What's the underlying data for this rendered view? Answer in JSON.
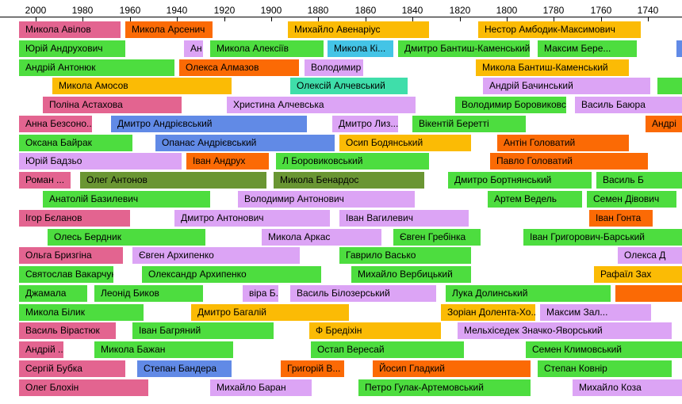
{
  "chart_data": {
    "type": "timeline",
    "x_axis": {
      "ticks": [
        2000,
        1980,
        1960,
        1940,
        1920,
        1900,
        1880,
        1860,
        1840,
        1820,
        1800,
        1780,
        1760,
        1740
      ],
      "direction": "descending"
    },
    "categories": {
      "sport": "#e36490",
      "literature": "#4ddd3f",
      "art": "#dca4f5",
      "politics": "#fb6a05",
      "music": "#fbbb05",
      "science": "#618ae6",
      "cinema": "#3fdeaa",
      "architecture": "#6a9633",
      "religion": "#44c4e6"
    },
    "rows": [
      [
        {
          "label": "Микола Авілов",
          "start": 2007,
          "end": 1964,
          "category": "sport"
        },
        {
          "label": "Микола Арсенич",
          "start": 1962,
          "end": 1925,
          "category": "politics"
        },
        {
          "label": "Михайло Авенаріус",
          "start": 1893,
          "end": 1833,
          "category": "music"
        },
        {
          "label": "Нестор Амбодик-Максимович",
          "start": 1812,
          "end": 1743,
          "category": "music"
        }
      ],
      [
        {
          "label": "Юрій Андрухович",
          "start": 2007,
          "end": 1962,
          "category": "literature"
        },
        {
          "label": "Ан",
          "start": 1937,
          "end": 1929,
          "category": "art"
        },
        {
          "label": "Микола Алексіїв",
          "start": 1926,
          "end": 1878,
          "category": "literature"
        },
        {
          "label": "Микола Кі...",
          "start": 1876,
          "end": 1848,
          "category": "religion"
        },
        {
          "label": "Дмитро Бантиш-Каменський",
          "start": 1846,
          "end": 1790,
          "category": "literature"
        },
        {
          "label": "Максим Бере...",
          "start": 1787,
          "end": 1745,
          "category": "literature"
        },
        {
          "label": "",
          "start": 1728,
          "end": 1710,
          "category": "science"
        }
      ],
      [
        {
          "label": "Андрій Антонюк",
          "start": 2007,
          "end": 1941,
          "category": "literature"
        },
        {
          "label": "Олекса Алмазов",
          "start": 1939,
          "end": 1888,
          "category": "politics"
        },
        {
          "label": "Володимир Ба...",
          "start": 1886,
          "end": 1861,
          "category": "art"
        },
        {
          "label": "Микола Бантиш-Каменський",
          "start": 1813,
          "end": 1748,
          "category": "music"
        }
      ],
      [
        {
          "label": "Микола Амосов",
          "start": 1993,
          "end": 1917,
          "category": "music"
        },
        {
          "label": "Олексій Алчевський",
          "start": 1892,
          "end": 1842,
          "category": "cinema"
        },
        {
          "label": "Андрій Бачинський",
          "start": 1810,
          "end": 1739,
          "category": "art"
        },
        {
          "label": "",
          "start": 1736,
          "end": 1710,
          "category": "literature"
        }
      ],
      [
        {
          "label": "Поліна Астахова",
          "start": 1997,
          "end": 1938,
          "category": "sport"
        },
        {
          "label": "Христина Алчевська",
          "start": 1919,
          "end": 1839,
          "category": "art"
        },
        {
          "label": "Володимир Боровиковський",
          "start": 1822,
          "end": 1775,
          "category": "literature"
        },
        {
          "label": "Василь Баюра",
          "start": 1771,
          "end": 1720,
          "category": "art"
        }
      ],
      [
        {
          "label": "Анна Безсоно...",
          "start": 2007,
          "end": 1976,
          "category": "sport"
        },
        {
          "label": "Дмитро Андрієвський",
          "start": 1968,
          "end": 1885,
          "category": "science"
        },
        {
          "label": "Дмитро Лиз...",
          "start": 1874,
          "end": 1846,
          "category": "art"
        },
        {
          "label": "Вікентій Беретті",
          "start": 1840,
          "end": 1792,
          "category": "literature"
        },
        {
          "label": "Андрі",
          "start": 1741,
          "end": 1720,
          "category": "politics"
        }
      ],
      [
        {
          "label": "Оксана Байрак",
          "start": 2007,
          "end": 1959,
          "category": "literature"
        },
        {
          "label": "Опанас Андрієвський",
          "start": 1949,
          "end": 1873,
          "category": "science"
        },
        {
          "label": "Осип Бодянський",
          "start": 1871,
          "end": 1815,
          "category": "music"
        },
        {
          "label": "Антін Головатий",
          "start": 1804,
          "end": 1748,
          "category": "politics"
        }
      ],
      [
        {
          "label": "Юрій Бадзьо",
          "start": 2007,
          "end": 1938,
          "category": "art"
        },
        {
          "label": "Іван Андрух",
          "start": 1936,
          "end": 1901,
          "category": "politics"
        },
        {
          "label": "Л Боровиковський",
          "start": 1898,
          "end": 1833,
          "category": "literature"
        },
        {
          "label": "Павло Головатий",
          "start": 1807,
          "end": 1740,
          "category": "politics"
        }
      ],
      [
        {
          "label": "Роман ...",
          "start": 2007,
          "end": 1985,
          "category": "sport"
        },
        {
          "label": "Олег Антонов",
          "start": 1981,
          "end": 1902,
          "category": "architecture"
        },
        {
          "label": "Микола Бенардос",
          "start": 1899,
          "end": 1835,
          "category": "architecture"
        },
        {
          "label": "Дмитро Бортнянський",
          "start": 1825,
          "end": 1764,
          "category": "literature"
        },
        {
          "label": "Василь Б",
          "start": 1762,
          "end": 1720,
          "category": "literature"
        }
      ],
      [
        {
          "label": "Анатолій Базилевич",
          "start": 1997,
          "end": 1926,
          "category": "literature"
        },
        {
          "label": "Володимир Антонович",
          "start": 1914,
          "end": 1839,
          "category": "art"
        },
        {
          "label": "Артем Ведель",
          "start": 1808,
          "end": 1768,
          "category": "literature"
        },
        {
          "label": "Семен Дівович",
          "start": 1766,
          "end": 1728,
          "category": "literature"
        }
      ],
      [
        {
          "label": "Ігор Бєланов",
          "start": 2007,
          "end": 1960,
          "category": "sport"
        },
        {
          "label": "Дмитро Антонович",
          "start": 1941,
          "end": 1875,
          "category": "art"
        },
        {
          "label": "Іван Вагилевич",
          "start": 1871,
          "end": 1816,
          "category": "art"
        },
        {
          "label": "Іван Гонта",
          "start": 1765,
          "end": 1738,
          "category": "politics"
        }
      ],
      [
        {
          "label": "Олесь Бердник",
          "start": 1995,
          "end": 1928,
          "category": "literature"
        },
        {
          "label": "Микола Аркас",
          "start": 1904,
          "end": 1853,
          "category": "art"
        },
        {
          "label": "Євген Гребінка",
          "start": 1848,
          "end": 1811,
          "category": "literature"
        },
        {
          "label": "Іван Григорович-Барський",
          "start": 1793,
          "end": 1716,
          "category": "literature"
        }
      ],
      [
        {
          "label": "Ольга Бризгіна",
          "start": 2007,
          "end": 1963,
          "category": "sport"
        },
        {
          "label": "Євген Архипенко",
          "start": 1959,
          "end": 1888,
          "category": "art"
        },
        {
          "label": "Гаврило Васько",
          "start": 1871,
          "end": 1815,
          "category": "literature"
        },
        {
          "label": "Олекса Д",
          "start": 1753,
          "end": 1720,
          "category": "art"
        }
      ],
      [
        {
          "label": "Святослав Вакарчук",
          "start": 2007,
          "end": 1967,
          "category": "literature"
        },
        {
          "label": "Олександр Архипенко",
          "start": 1955,
          "end": 1879,
          "category": "literature"
        },
        {
          "label": "Михайло Вербицький",
          "start": 1866,
          "end": 1815,
          "category": "literature"
        },
        {
          "label": "Рафаїл Зах",
          "start": 1763,
          "end": 1720,
          "category": "music"
        }
      ],
      [
        {
          "label": "Джамала",
          "start": 2007,
          "end": 1978,
          "category": "literature"
        },
        {
          "label": "Леонід Биков",
          "start": 1975,
          "end": 1929,
          "category": "literature"
        },
        {
          "label": "віра Б...",
          "start": 1912,
          "end": 1897,
          "category": "art"
        },
        {
          "label": "Василь Білозерський",
          "start": 1892,
          "end": 1830,
          "category": "art"
        },
        {
          "label": "Лука Долинський",
          "start": 1826,
          "end": 1756,
          "category": "literature"
        },
        {
          "label": "",
          "start": 1754,
          "end": 1720,
          "category": "politics"
        }
      ],
      [
        {
          "label": "Микола Білик",
          "start": 2007,
          "end": 1954,
          "category": "literature"
        },
        {
          "label": "Дмитро Багалій",
          "start": 1934,
          "end": 1867,
          "category": "music"
        },
        {
          "label": "Зорiан Долента-Хо...",
          "start": 1828,
          "end": 1788,
          "category": "music"
        },
        {
          "label": "Максим Зал...",
          "start": 1786,
          "end": 1739,
          "category": "art"
        }
      ],
      [
        {
          "label": "Василь Вірастюк",
          "start": 2007,
          "end": 1966,
          "category": "sport"
        },
        {
          "label": "Іван Багряний",
          "start": 1959,
          "end": 1899,
          "category": "literature"
        },
        {
          "label": "Ф Бредіхін",
          "start": 1884,
          "end": 1828,
          "category": "music"
        },
        {
          "label": "Мельхіседек Значко-Яворський",
          "start": 1821,
          "end": 1730,
          "category": "art"
        }
      ],
      [
        {
          "label": "Андрій ...",
          "start": 2007,
          "end": 1988,
          "category": "sport"
        },
        {
          "label": "Микола Бажан",
          "start": 1975,
          "end": 1916,
          "category": "literature"
        },
        {
          "label": "Остап Вересай",
          "start": 1883,
          "end": 1818,
          "category": "literature"
        },
        {
          "label": "Семен Климовський",
          "start": 1792,
          "end": 1710,
          "category": "literature"
        }
      ],
      [
        {
          "label": "Сергій Бубка",
          "start": 2007,
          "end": 1962,
          "category": "sport"
        },
        {
          "label": "Степан Бандера",
          "start": 1957,
          "end": 1917,
          "category": "science"
        },
        {
          "label": "Григорій В...",
          "start": 1896,
          "end": 1869,
          "category": "politics"
        },
        {
          "label": "Йосип Гладкий",
          "start": 1857,
          "end": 1790,
          "category": "politics"
        },
        {
          "label": "Степан Ковнір",
          "start": 1787,
          "end": 1730,
          "category": "literature"
        }
      ],
      [
        {
          "label": "Олег Блохін",
          "start": 2007,
          "end": 1952,
          "category": "sport"
        },
        {
          "label": "Михайло Баран",
          "start": 1926,
          "end": 1883,
          "category": "art"
        },
        {
          "label": "Петро Гулак-Артемовський",
          "start": 1863,
          "end": 1790,
          "category": "literature"
        },
        {
          "label": "Михайло Коза",
          "start": 1772,
          "end": 1720,
          "category": "art"
        }
      ]
    ]
  }
}
